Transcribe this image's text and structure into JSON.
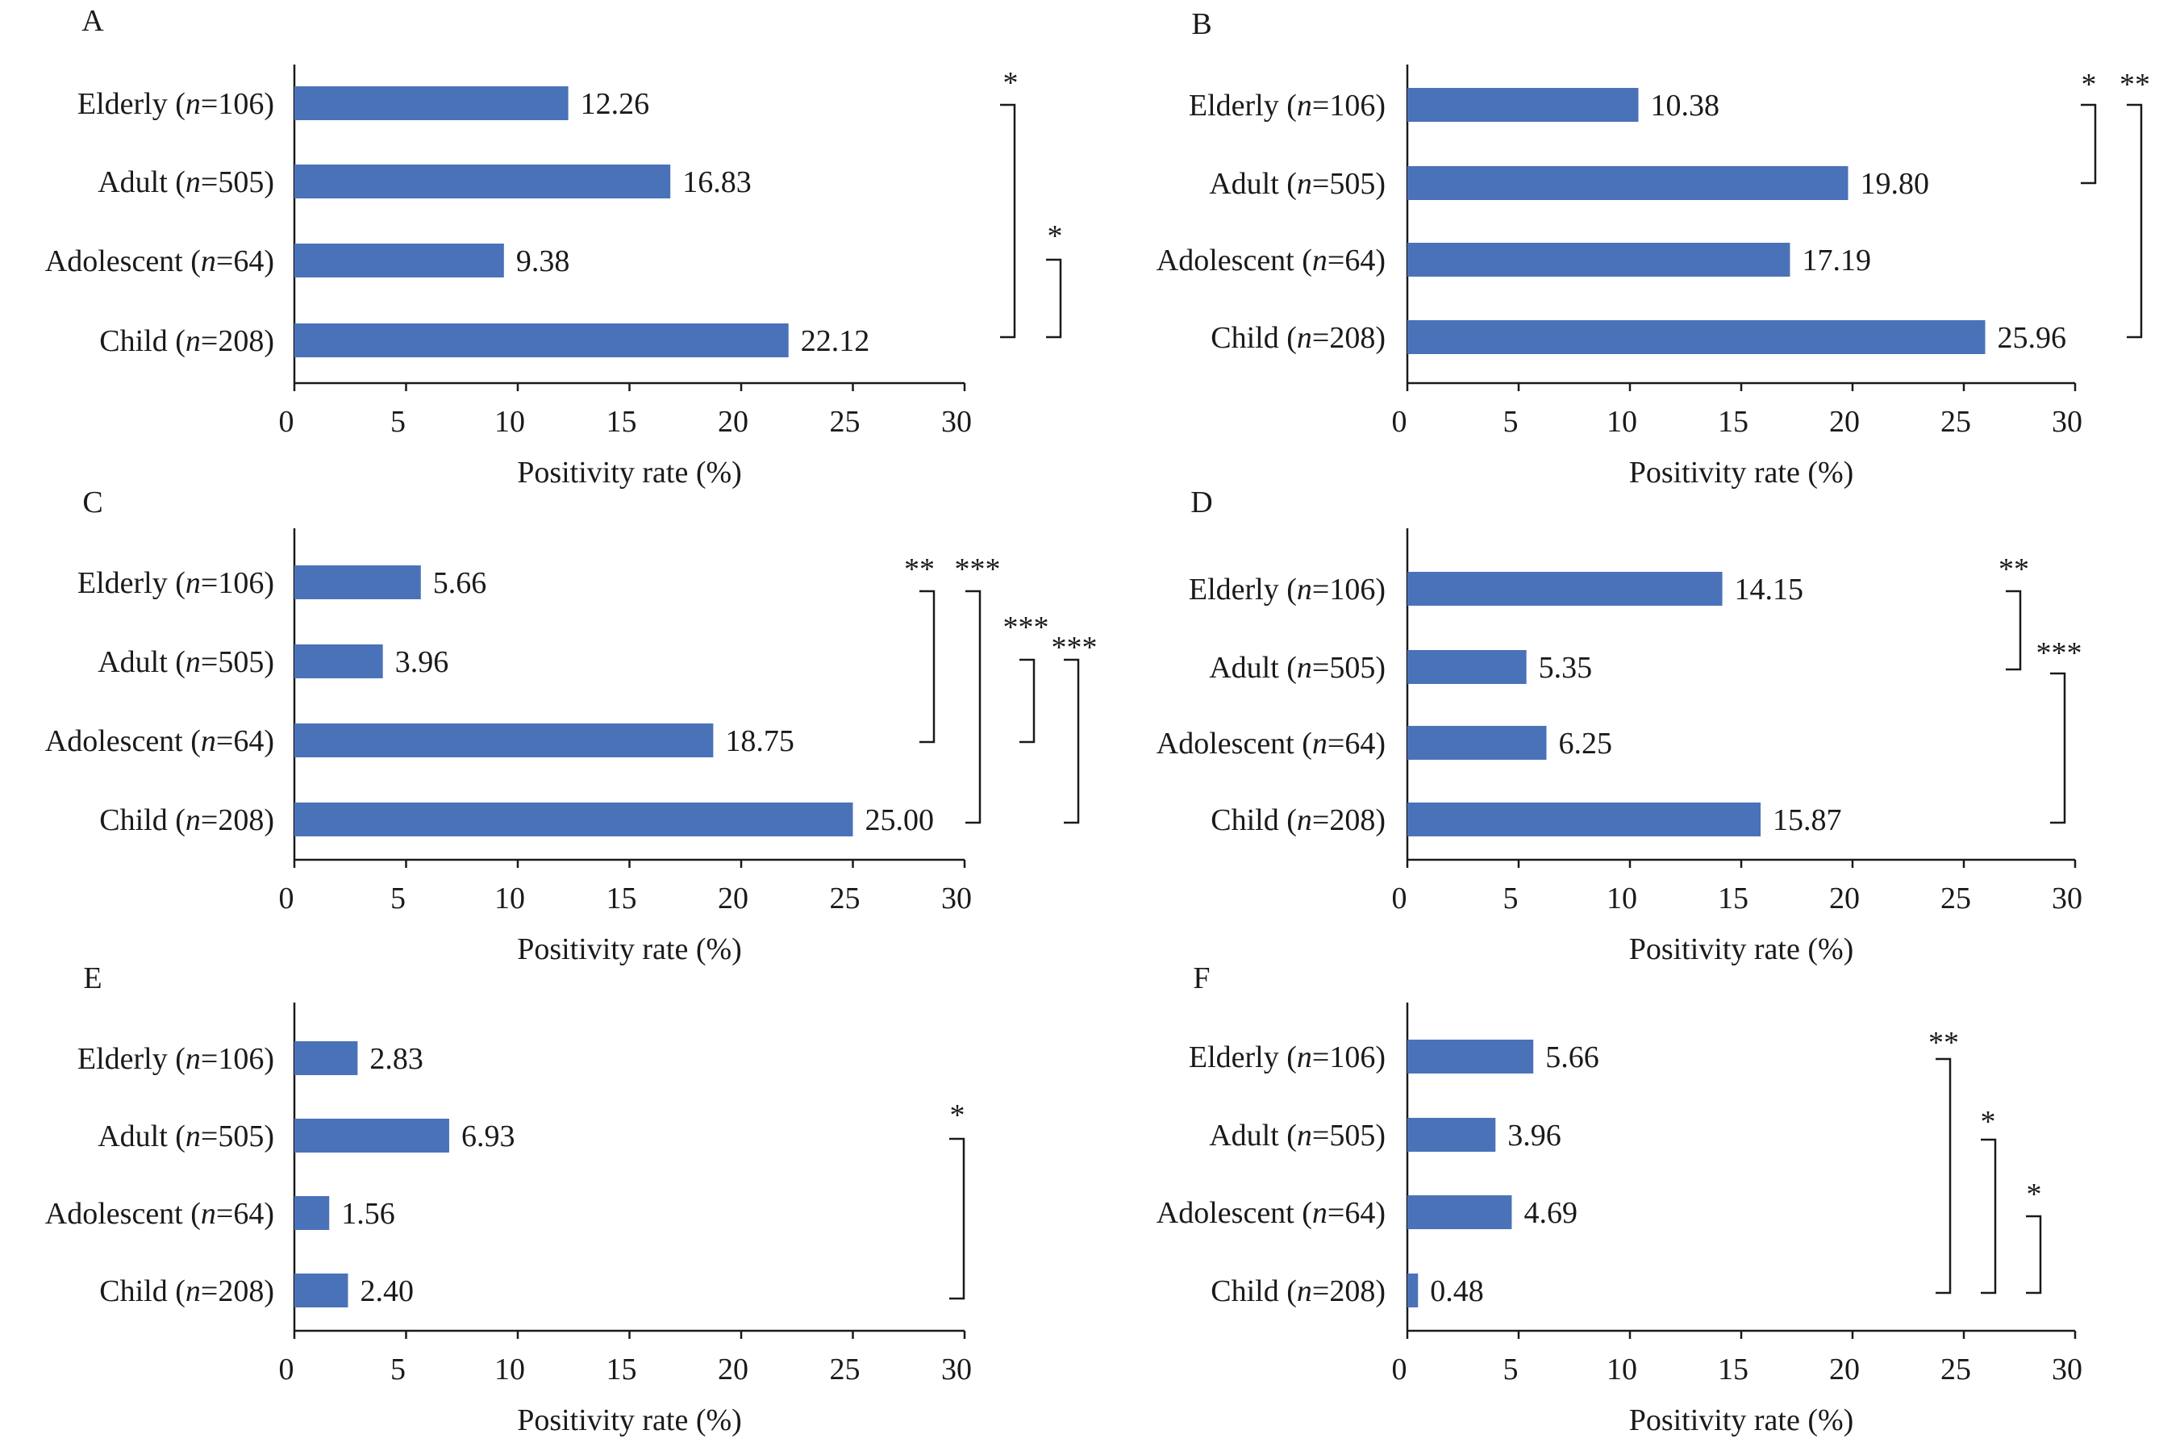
{
  "figure": {
    "x_axis_title": "Positivity rate (%)",
    "categories": [
      "Elderly (n=106)",
      "Adult (n=505)",
      "Adolescent (n=64)",
      "Child (n=208)"
    ],
    "category_parts": [
      {
        "name": "Elderly",
        "n": "106"
      },
      {
        "name": "Adult",
        "n": "505"
      },
      {
        "name": "Adolescent",
        "n": "64"
      },
      {
        "name": "Child",
        "n": "208"
      }
    ],
    "x_ticks": [
      "0",
      "5",
      "10",
      "15",
      "20",
      "25",
      "30"
    ],
    "bar_color": "#4a72b8"
  },
  "chart_data": [
    {
      "panel": "A",
      "type": "bar",
      "orientation": "horizontal",
      "categories": [
        "Elderly (n=106)",
        "Adult (n=505)",
        "Adolescent (n=64)",
        "Child (n=208)"
      ],
      "values": [
        12.26,
        16.83,
        9.38,
        22.12
      ],
      "value_labels": [
        "12.26",
        "16.83",
        "9.38",
        "22.12"
      ],
      "xlabel": "Positivity rate (%)",
      "xlim": [
        0,
        30
      ],
      "significance": [
        {
          "from": "Elderly (n=106)",
          "to": "Child (n=208)",
          "stars": "*"
        },
        {
          "from": "Adolescent (n=64)",
          "to": "Child (n=208)",
          "stars": "*"
        }
      ]
    },
    {
      "panel": "B",
      "type": "bar",
      "orientation": "horizontal",
      "categories": [
        "Elderly (n=106)",
        "Adult (n=505)",
        "Adolescent (n=64)",
        "Child (n=208)"
      ],
      "values": [
        10.38,
        19.8,
        17.19,
        25.96
      ],
      "value_labels": [
        "10.38",
        "19.80",
        "17.19",
        "25.96"
      ],
      "xlabel": "Positivity rate (%)",
      "xlim": [
        0,
        30
      ],
      "significance": [
        {
          "from": "Elderly (n=106)",
          "to": "Adult (n=505)",
          "stars": "*"
        },
        {
          "from": "Elderly (n=106)",
          "to": "Child (n=208)",
          "stars": "**"
        }
      ]
    },
    {
      "panel": "C",
      "type": "bar",
      "orientation": "horizontal",
      "categories": [
        "Elderly (n=106)",
        "Adult (n=505)",
        "Adolescent (n=64)",
        "Child (n=208)"
      ],
      "values": [
        5.66,
        3.96,
        18.75,
        25.0
      ],
      "value_labels": [
        "5.66",
        "3.96",
        "18.75",
        "25.00"
      ],
      "xlabel": "Positivity rate (%)",
      "xlim": [
        0,
        30
      ],
      "significance": [
        {
          "from": "Elderly (n=106)",
          "to": "Adolescent (n=64)",
          "stars": "**"
        },
        {
          "from": "Elderly (n=106)",
          "to": "Child (n=208)",
          "stars": "***"
        },
        {
          "from": "Adult (n=505)",
          "to": "Adolescent (n=64)",
          "stars": "***"
        },
        {
          "from": "Adult (n=505)",
          "to": "Child (n=208)",
          "stars": "***"
        }
      ]
    },
    {
      "panel": "D",
      "type": "bar",
      "orientation": "horizontal",
      "categories": [
        "Elderly (n=106)",
        "Adult (n=505)",
        "Adolescent (n=64)",
        "Child (n=208)"
      ],
      "values": [
        14.15,
        5.35,
        6.25,
        15.87
      ],
      "value_labels": [
        "14.15",
        "5.35",
        "6.25",
        "15.87"
      ],
      "xlabel": "Positivity rate (%)",
      "xlim": [
        0,
        30
      ],
      "significance": [
        {
          "from": "Elderly (n=106)",
          "to": "Adult (n=505)",
          "stars": "**"
        },
        {
          "from": "Adult (n=505)",
          "to": "Child (n=208)",
          "stars": "***"
        }
      ]
    },
    {
      "panel": "E",
      "type": "bar",
      "orientation": "horizontal",
      "categories": [
        "Elderly (n=106)",
        "Adult (n=505)",
        "Adolescent (n=64)",
        "Child (n=208)"
      ],
      "values": [
        2.83,
        6.93,
        1.56,
        2.4
      ],
      "value_labels": [
        "2.83",
        "6.93",
        "1.56",
        "2.40"
      ],
      "xlabel": "Positivity rate (%)",
      "xlim": [
        0,
        30
      ],
      "significance": [
        {
          "from": "Adult (n=505)",
          "to": "Child (n=208)",
          "stars": "*"
        }
      ]
    },
    {
      "panel": "F",
      "type": "bar",
      "orientation": "horizontal",
      "categories": [
        "Elderly (n=106)",
        "Adult (n=505)",
        "Adolescent (n=64)",
        "Child (n=208)"
      ],
      "values": [
        5.66,
        3.96,
        4.69,
        0.48
      ],
      "value_labels": [
        "5.66",
        "3.96",
        "4.69",
        "0.48"
      ],
      "xlabel": "Positivity rate (%)",
      "xlim": [
        0,
        30
      ],
      "significance": [
        {
          "from": "Elderly (n=106)",
          "to": "Child (n=208)",
          "stars": "**"
        },
        {
          "from": "Adult (n=505)",
          "to": "Child (n=208)",
          "stars": "*"
        },
        {
          "from": "Adolescent (n=64)",
          "to": "Child (n=208)",
          "stars": "*"
        }
      ]
    }
  ]
}
